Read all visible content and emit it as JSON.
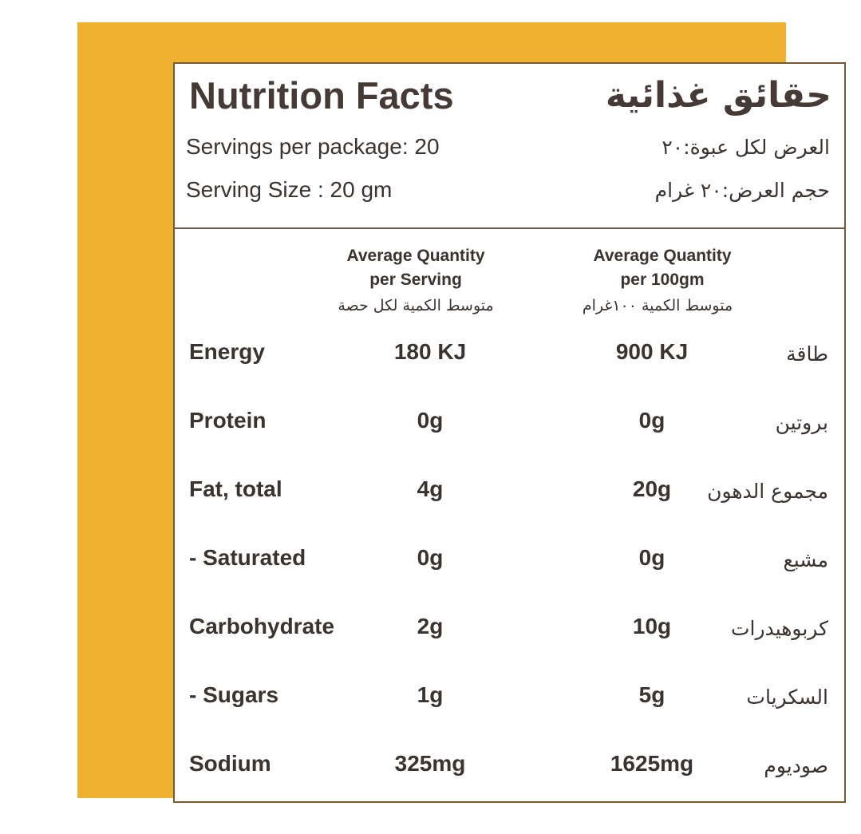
{
  "colors": {
    "frame": "#f0b030",
    "text": "#3a3330",
    "panel": "#ffffff"
  },
  "header": {
    "title": "Nutrition Facts",
    "title_ar": "حقائق غذائية",
    "servings_per_package": "Servings per package: 20",
    "servings_per_package_ar": "العرض لكل عبوة:٢٠",
    "serving_size": "Serving Size : 20 gm",
    "serving_size_ar": "حجم العرض:٢٠ غرام"
  },
  "columns": {
    "per_serving_line1": "Average Quantity",
    "per_serving_line2": "per Serving",
    "per_serving_ar": "متوسط الكمية لكل حصة",
    "per_100_line1": "Average Quantity",
    "per_100_line2": "per 100gm",
    "per_100_ar": "متوسط الكمية ١٠٠غرام"
  },
  "rows": [
    {
      "label": "Energy",
      "per_serving": "180 KJ",
      "per_100": "900 KJ",
      "label_ar": "طاقة"
    },
    {
      "label": "Protein",
      "per_serving": "0g",
      "per_100": "0g",
      "label_ar": "بروتين"
    },
    {
      "label": "Fat, total",
      "per_serving": "4g",
      "per_100": "20g",
      "label_ar": "مجموع الدهون"
    },
    {
      "label": "- Saturated",
      "per_serving": "0g",
      "per_100": "0g",
      "label_ar": "مشبع"
    },
    {
      "label": "Carbohydrate",
      "per_serving": "2g",
      "per_100": "10g",
      "label_ar": "كربوهيدرات"
    },
    {
      "label": "- Sugars",
      "per_serving": "1g",
      "per_100": "5g",
      "label_ar": "السكريات"
    },
    {
      "label": "Sodium",
      "per_serving": "325mg",
      "per_100": "1625mg",
      "label_ar": "صوديوم"
    }
  ]
}
